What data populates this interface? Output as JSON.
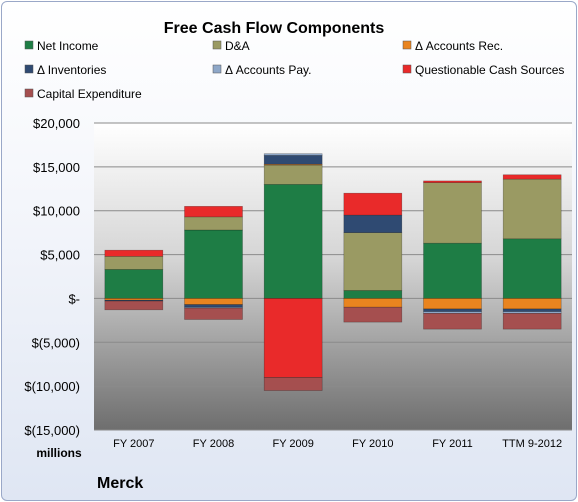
{
  "chart_data": {
    "type": "bar",
    "stacked": true,
    "title": "Free Cash Flow Components",
    "unit_label": "millions",
    "company": "Merck",
    "categories": [
      "FY 2007",
      "FY 2008",
      "FY 2009",
      "FY 2010",
      "FY 2011",
      "TTM 9-2012"
    ],
    "ylim": [
      -15000,
      20000
    ],
    "yticks": [
      20000,
      15000,
      10000,
      5000,
      0,
      -5000,
      -10000,
      -15000
    ],
    "ytick_labels": [
      "$20,000",
      "$15,000",
      "$10,000",
      "$5,000",
      "$-",
      "$(5,000)",
      "$(10,000)",
      "$(15,000)"
    ],
    "grid": true,
    "legend_position": "top",
    "series": [
      {
        "name": "Net Income",
        "color": "#1e7d45",
        "values": [
          3300,
          7800,
          13000,
          900,
          6300,
          6800
        ]
      },
      {
        "name": "D&A",
        "color": "#9a9a63",
        "values": [
          1500,
          1500,
          2200,
          6600,
          6900,
          6800
        ]
      },
      {
        "name": "Δ Accounts Rec.",
        "color": "#e9841f",
        "values": [
          -200,
          -700,
          100,
          -1000,
          -1200,
          -1200
        ]
      },
      {
        "name": "Δ Inventories",
        "color": "#2f4a72",
        "values": [
          -100,
          -300,
          1000,
          2000,
          -300,
          -300
        ]
      },
      {
        "name": "Δ Accounts Pay.",
        "color": "#8ea7c8",
        "values": [
          0,
          -100,
          200,
          0,
          -200,
          -200
        ]
      },
      {
        "name": "Questionable Cash Sources",
        "color": "#e92a2a",
        "values": [
          700,
          1200,
          -9000,
          2500,
          200,
          500
        ]
      },
      {
        "name": "Capital Expenditure",
        "color": "#a54f4f",
        "values": [
          -1000,
          -1300,
          -1500,
          -1700,
          -1800,
          -1800
        ]
      }
    ]
  }
}
